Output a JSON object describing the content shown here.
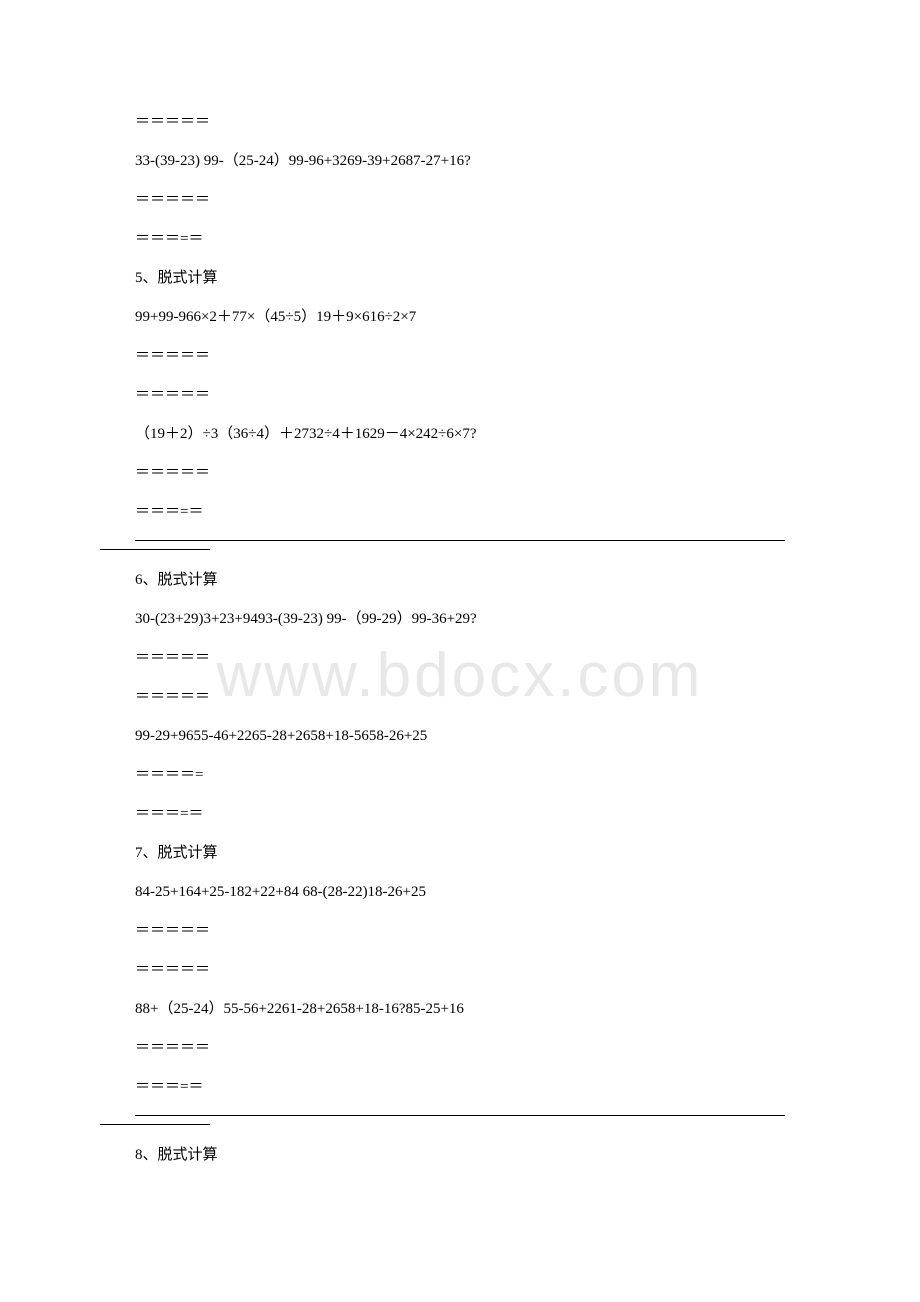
{
  "watermark": "www.bdocx.com",
  "lines": [
    {
      "text": "＝＝＝＝＝",
      "indent": true
    },
    {
      "text": "33-(39-23)    99-（25-24）99-96+3269-39+2687-27+16?",
      "indent": true
    },
    {
      "text": "＝＝＝＝＝",
      "indent": true
    },
    {
      "text": "＝＝＝=＝",
      "indent": true
    },
    {
      "text": "5、脱式计算",
      "indent": true
    },
    {
      "text": "99+99-966×2＋77×（45÷5）19＋9×616÷2×7",
      "indent": true
    },
    {
      "text": "＝＝＝＝＝",
      "indent": true
    },
    {
      "text": "＝＝＝＝＝",
      "indent": true
    },
    {
      "text": "（19＋2）÷3（36÷4）＋2732÷4＋1629－4×242÷6×7?",
      "indent": true
    },
    {
      "text": "＝＝＝＝＝",
      "indent": true
    },
    {
      "text": "＝＝＝=＝",
      "indent": true
    },
    {
      "type": "hr",
      "indent": true
    },
    {
      "type": "hr-short"
    },
    {
      "text": "6、脱式计算",
      "indent": true
    },
    {
      "text": "30-(23+29)3+23+9493-(39-23)    99-（99-29）99-36+29?",
      "indent": true
    },
    {
      "text": "＝＝＝＝＝",
      "indent": true
    },
    {
      "text": "＝＝＝＝＝",
      "indent": true
    },
    {
      "text": "99-29+9655-46+2265-28+2658+18-5658-26+25",
      "indent": true
    },
    {
      "text": "＝＝＝＝=",
      "indent": true
    },
    {
      "text": "＝＝＝=＝",
      "indent": true
    },
    {
      "text": "7、脱式计算",
      "indent": true
    },
    {
      "text": "84-25+164+25-182+22+84    68-(28-22)18-26+25",
      "indent": true
    },
    {
      "text": "＝＝＝＝＝",
      "indent": true
    },
    {
      "text": "＝＝＝＝＝",
      "indent": true
    },
    {
      "text": "88+（25-24）55-56+2261-28+2658+18-16?85-25+16",
      "indent": true
    },
    {
      "text": "＝＝＝＝＝",
      "indent": true
    },
    {
      "text": "＝＝＝=＝",
      "indent": true
    },
    {
      "type": "hr",
      "indent": true
    },
    {
      "type": "hr-short"
    },
    {
      "text": "8、脱式计算",
      "indent": true
    }
  ]
}
